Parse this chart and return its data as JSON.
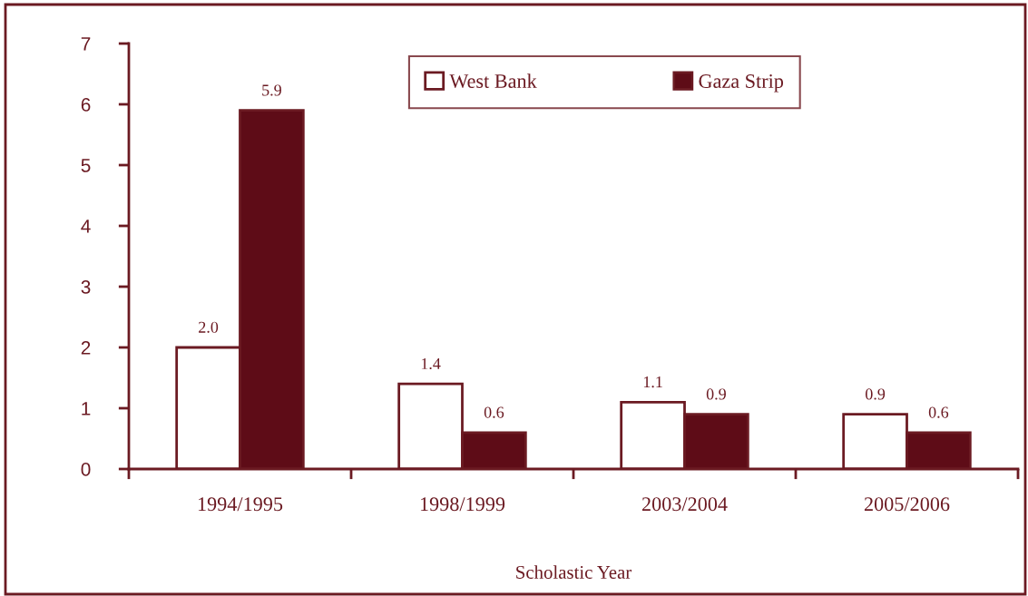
{
  "chart_data": {
    "type": "bar",
    "xlabel": "Scholastic Year",
    "categories": [
      "1994/1995",
      "1998/1999",
      "2003/2004",
      "2005/2006"
    ],
    "series": [
      {
        "name": "West Bank",
        "color": "#ffffff",
        "values": [
          2.0,
          1.4,
          1.1,
          0.9
        ],
        "value_labels": [
          "2.0",
          "1.4",
          "1.1",
          "0.9"
        ]
      },
      {
        "name": "Gaza Strip",
        "color": "#5e0c17",
        "values": [
          5.9,
          0.6,
          0.9,
          0.6
        ],
        "value_labels": [
          "5.9",
          "0.6",
          "0.9",
          "0.6"
        ]
      }
    ],
    "ylim": [
      0,
      7
    ],
    "yticks": [
      0,
      1,
      2,
      3,
      4,
      5,
      6,
      7
    ],
    "legend": "top"
  }
}
